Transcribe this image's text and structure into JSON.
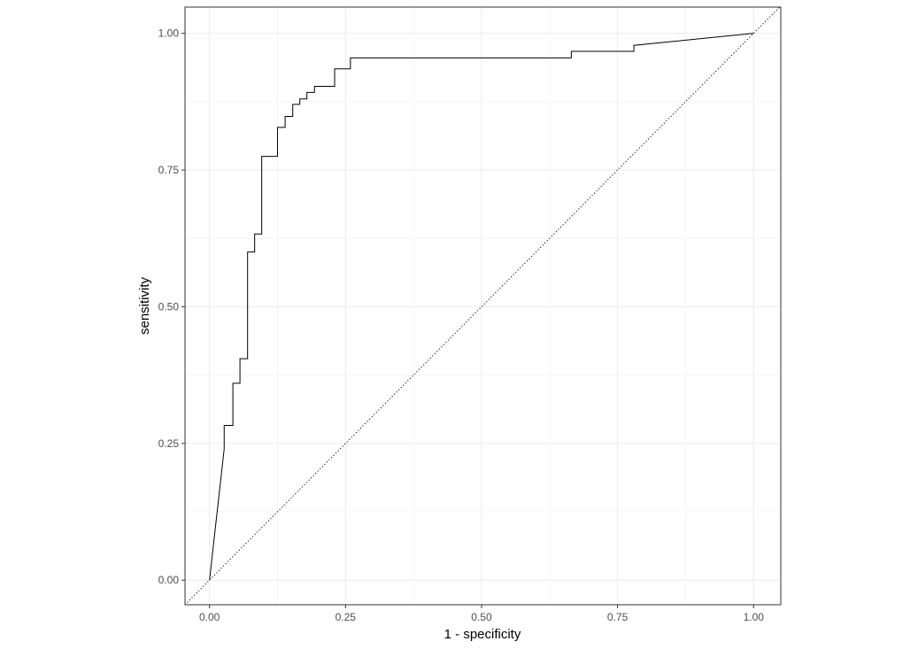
{
  "chart_data": {
    "type": "line",
    "title": "",
    "xlabel": "1 - specificity",
    "ylabel": "sensitivity",
    "xlim": [
      -0.045,
      1.05
    ],
    "ylim": [
      -0.045,
      1.048
    ],
    "x_ticks": [
      0,
      0.25,
      0.5,
      0.75,
      1
    ],
    "x_tick_labels": [
      "0.00",
      "0.25",
      "0.50",
      "0.75",
      "1.00"
    ],
    "y_ticks": [
      0,
      0.25,
      0.5,
      0.75,
      1
    ],
    "y_tick_labels": [
      "0.00",
      "0.25",
      "0.50",
      "0.75",
      "1.00"
    ],
    "x_minor": [
      0.125,
      0.375,
      0.625,
      0.875
    ],
    "y_minor": [
      0.125,
      0.375,
      0.625,
      0.875
    ],
    "grid": true,
    "theme": "bw",
    "colors": {
      "panel_border": "#333333",
      "grid_major": "#ebebeb",
      "grid_minor": "#f5f5f5",
      "curve": "#000000",
      "reference": "#000000"
    },
    "series": [
      {
        "style": "step",
        "x": [
          0,
          0.027,
          0.027,
          0.043,
          0.043,
          0.056,
          0.056,
          0.07,
          0.07,
          0.083,
          0.083,
          0.096,
          0.096,
          0.125,
          0.125,
          0.139,
          0.139,
          0.153,
          0.153,
          0.166,
          0.166,
          0.179,
          0.179,
          0.193,
          0.193,
          0.23,
          0.23,
          0.259,
          0.259,
          0.665,
          0.665,
          0.78,
          0.78,
          1.0
        ],
        "y": [
          0,
          0.24,
          0.283,
          0.283,
          0.36,
          0.36,
          0.405,
          0.405,
          0.6,
          0.6,
          0.633,
          0.633,
          0.775,
          0.775,
          0.828,
          0.828,
          0.848,
          0.848,
          0.87,
          0.87,
          0.88,
          0.88,
          0.892,
          0.892,
          0.903,
          0.903,
          0.935,
          0.935,
          0.955,
          0.955,
          0.967,
          0.967,
          0.978,
          1.0
        ]
      },
      {
        "style": "dotted",
        "x": [
          -0.045,
          1.05
        ],
        "y": [
          -0.045,
          1.05
        ]
      }
    ]
  }
}
